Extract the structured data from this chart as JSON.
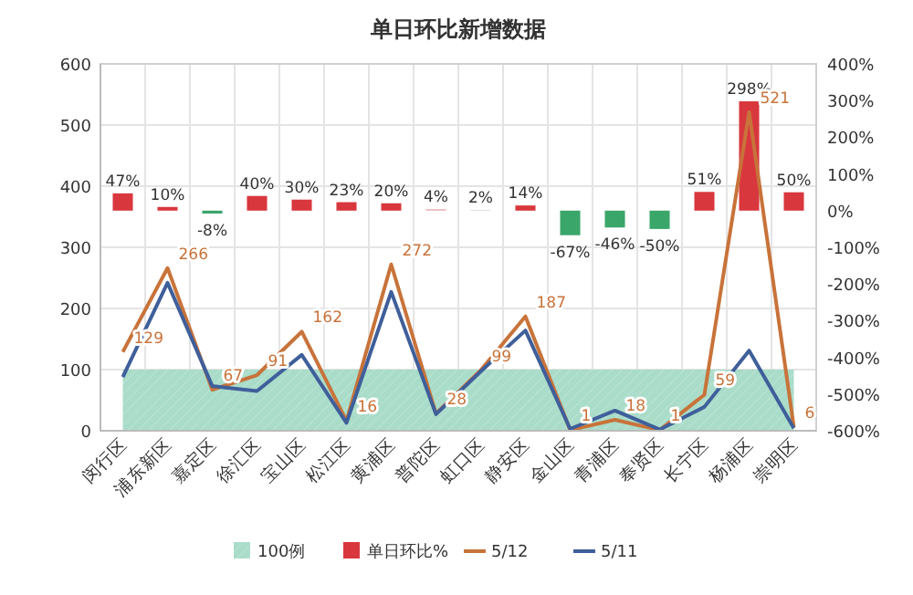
{
  "chart_data": {
    "type": "line",
    "title": "单日环比新增数据",
    "categories": [
      "闵行区",
      "浦东新区",
      "嘉定区",
      "徐汇区",
      "宝山区",
      "松江区",
      "黄浦区",
      "普陀区",
      "虹口区",
      "静安区",
      "金山区",
      "青浦区",
      "奉贤区",
      "长宁区",
      "杨浦区",
      "崇明区"
    ],
    "series": [
      {
        "name": "100例",
        "type": "area",
        "color": "#a9dcc9",
        "values": [
          100,
          100,
          100,
          100,
          100,
          100,
          100,
          100,
          100,
          100,
          100,
          100,
          100,
          100,
          100,
          100
        ]
      },
      {
        "name": "单日环比%",
        "type": "bar",
        "axis": "y2",
        "color": "#d9373e",
        "colors": [
          "#d9373e",
          "#d9373e",
          "#3aa66a",
          "#d9373e",
          "#d9373e",
          "#d9373e",
          "#d9373e",
          "#e8b4b6",
          "#d9d9d9",
          "#d9373e",
          "#3aa66a",
          "#3aa66a",
          "#3aa66a",
          "#d9373e",
          "#d9373e",
          "#d9373e"
        ],
        "values": [
          47,
          10,
          -8,
          40,
          30,
          23,
          20,
          4,
          2,
          14,
          -67,
          -46,
          -50,
          51,
          298,
          50
        ],
        "value_labels": [
          "47%",
          "10%",
          "-8%",
          "40%",
          "30%",
          "23%",
          "20%",
          "4%",
          "2%",
          "14%",
          "-67%",
          "-46%",
          "-50%",
          "51%",
          "298%",
          "50%"
        ]
      },
      {
        "name": "5/12",
        "color": "#c8733a",
        "values": [
          129,
          266,
          67,
          91,
          162,
          16,
          272,
          28,
          99,
          187,
          1,
          18,
          1,
          59,
          521,
          6
        ],
        "value_labels": [
          "129",
          "266",
          "67",
          "91",
          "162",
          "16",
          "272",
          "28",
          "99",
          "187",
          "1",
          "18",
          "1",
          "59",
          "521",
          "6"
        ]
      },
      {
        "name": "5/11",
        "color": "#3f5f9a",
        "values": [
          88,
          242,
          73,
          65,
          124,
          13,
          227,
          27,
          97,
          164,
          3,
          33,
          2,
          39,
          131,
          4
        ]
      }
    ],
    "ylim": [
      0,
      600
    ],
    "yticks": [
      0,
      100,
      200,
      300,
      400,
      500,
      600
    ],
    "y2lim": [
      -600,
      400
    ],
    "y2ticks": [
      {
        "value": 400,
        "label": "400%"
      },
      {
        "value": 300,
        "label": "300%"
      },
      {
        "value": 200,
        "label": "200%"
      },
      {
        "value": 100,
        "label": "100%"
      },
      {
        "value": 0,
        "label": "0%"
      },
      {
        "value": -100,
        "label": "-100%"
      },
      {
        "value": -200,
        "label": "-200%"
      },
      {
        "value": -300,
        "label": "-300%"
      },
      {
        "value": -400,
        "label": "-400%"
      },
      {
        "value": -500,
        "label": "-500%"
      },
      {
        "value": -600,
        "label": "-600%"
      }
    ],
    "grid": true,
    "legend": "bottom",
    "marker": "none",
    "line_style": "solid"
  }
}
